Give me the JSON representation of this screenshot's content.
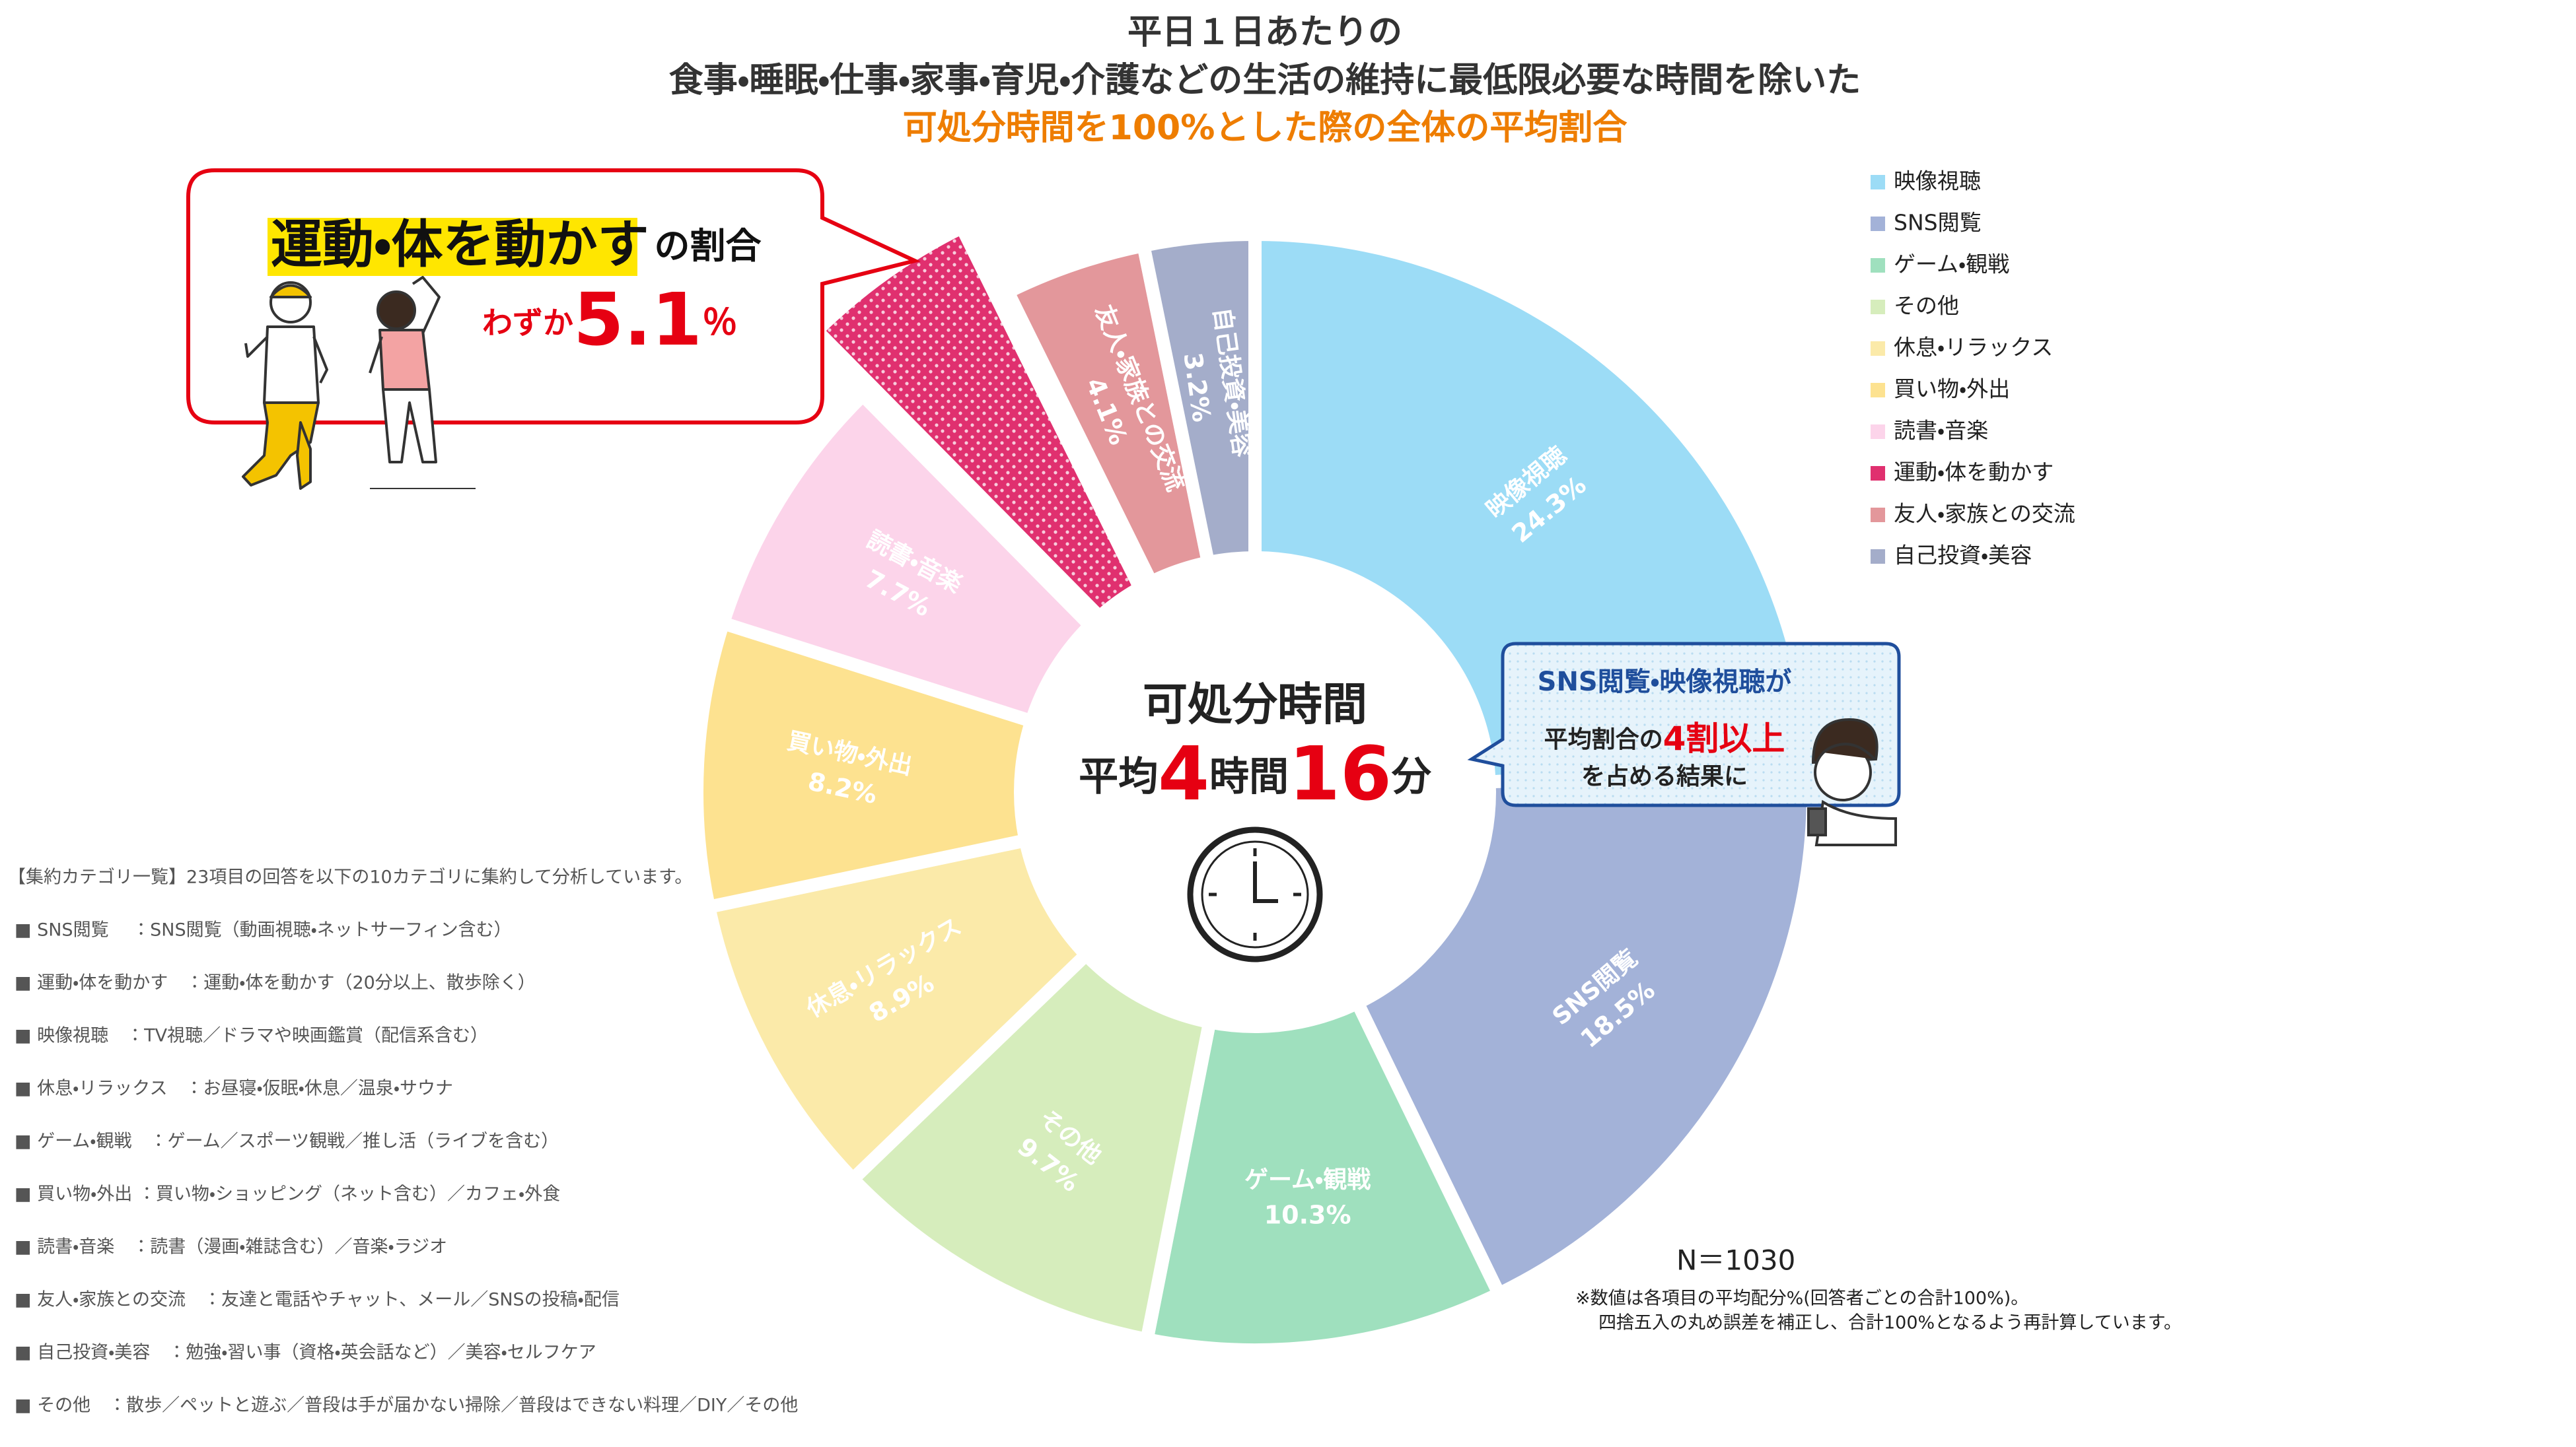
{
  "chart_data": {
    "type": "pie",
    "title_lines": [
      "平日１日あたりの",
      "食事・睡眠・仕事・家事・育児・介護などの生活の維持に最低限必要な時間を除いた",
      "可処分時間を100%とした際の全体の平均割合"
    ],
    "categories": [
      "映像視聴",
      "SNS閲覧",
      "ゲーム・観戦",
      "その他",
      "休息・リラックス",
      "買い物・外出",
      "読書・音楽",
      "運動・体を動かす",
      "友人・家族との交流",
      "自己投資・美容"
    ],
    "values": [
      24.3,
      18.5,
      10.3,
      9.7,
      8.9,
      8.2,
      7.7,
      5.1,
      4.1,
      3.2
    ],
    "value_labels": [
      "24.3%",
      "18.5%",
      "10.3%",
      "9.7%",
      "8.9%",
      "8.2%",
      "7.7%",
      null,
      "4.1%",
      "3.2%"
    ],
    "colors": [
      "#9cdcf6",
      "#a3b2d8",
      "#9fe0be",
      "#d6edbc",
      "#fbeaa9",
      "#fde290",
      "#fcd4ea",
      "#e0306f",
      "#e3979b",
      "#a4adca"
    ],
    "legend": "right",
    "annotations": {
      "center": {
        "title": "可処分時間",
        "prefix": "平均",
        "hours": 4,
        "hours_unit": "時間",
        "minutes": 16,
        "minutes_unit": "分"
      },
      "callout_left": {
        "suffix": "の割合",
        "lead": "わずか",
        "unit": "％"
      },
      "callout_right": {
        "line1": "SNS閲覧・映像視聴が",
        "line2_pre": "平均割合の",
        "line2_em": "4割以上",
        "line3": "を占める結果に"
      }
    }
  },
  "sample": "N＝1030",
  "footnotes": [
    "※数値は各項目の平均配分%(回答者ごとの合計100%)。",
    "四捨五入の丸め誤差を補正し、合計100%となるよう再計算しています。"
  ],
  "notes": {
    "heading": "【集約カテゴリ一覧】23項目の回答を以下の10カテゴリに集約して分析しています。",
    "items": [
      "■ SNS閲覧　 ：SNS閲覧（動画視聴・ネットサーフィン含む）",
      "■ 運動・体を動かす　：運動・体を動かす（20分以上、散歩除く）",
      "■ 映像視聴　：TV視聴／ドラマや映画鑑賞（配信系含む）",
      "■ 休息・リラックス　：お昼寝・仮眠・休息／温泉・サウナ",
      "■ ゲーム・観戦　：ゲーム／スポーツ観戦／推し活（ライブを含む）",
      "■ 買い物・外出 ：買い物・ショッピング（ネット含む）／カフェ・外食",
      "■ 読書・音楽　：読書（漫画・雑誌含む）／音楽・ラジオ",
      "■ 友人・家族との交流　：友達と電話やチャット、メール／SNSの投稿・配信",
      "■ 自己投資・美容　：勉強・習い事（資格・英会話など）／美容・セルフケア",
      "■ その他　：散歩／ペットと遊ぶ／普段は手が届かない掃除／普段はできない料理／DIY／その他"
    ]
  }
}
